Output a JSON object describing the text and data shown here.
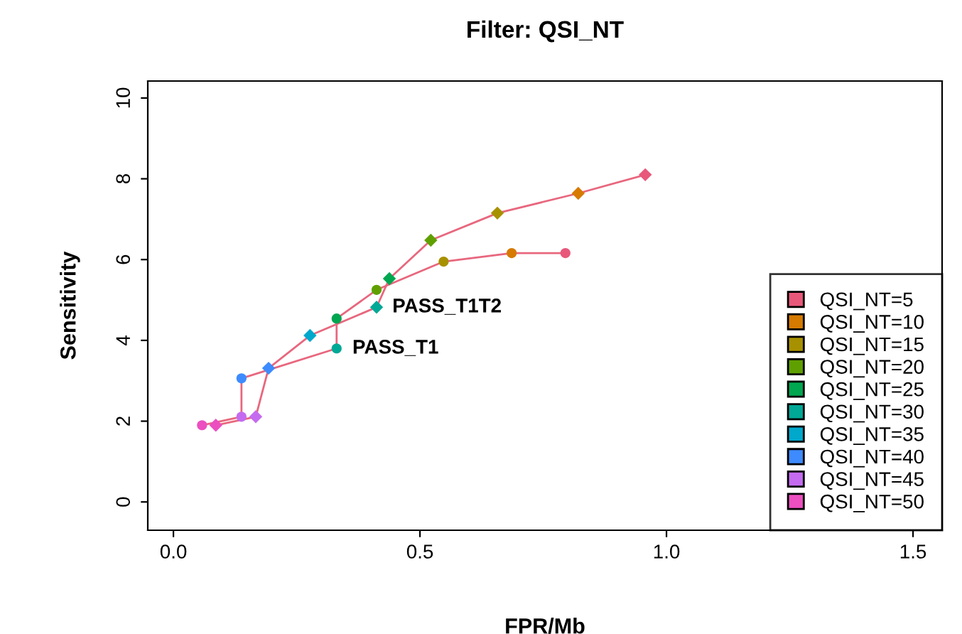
{
  "chart_data": {
    "type": "scatter",
    "title": "Filter: QSI_NT",
    "xlabel": "FPR/Mb",
    "ylabel": "Sensitivity",
    "xlim": [
      -0.052,
      1.559
    ],
    "ylim": [
      -0.7,
      10.42
    ],
    "xticks": [
      {
        "value": 0,
        "label": "0.0"
      },
      0.5,
      {
        "value": 1,
        "label": "1.0"
      },
      1.5
    ],
    "yticks": [
      0,
      2,
      4,
      6,
      8,
      10
    ],
    "grid": false,
    "legend": "bottom right",
    "series": [
      {
        "type": "line",
        "color": "#e8677e",
        "marker": "none",
        "x": [
          0.957,
          0.821,
          0.657,
          0.522,
          0.438,
          0.412,
          0.277,
          0.193,
          0.167,
          0.086
        ],
        "values": [
          8.1,
          7.64,
          7.15,
          6.48,
          5.53,
          4.82,
          4.12,
          3.31,
          2.11,
          1.9
        ]
      },
      {
        "type": "line",
        "color": "#e8677e",
        "marker": "none",
        "x": [
          0.795,
          0.686,
          0.548,
          0.412,
          0.331,
          0.331,
          0.138,
          0.138,
          0.058
        ],
        "values": [
          6.16,
          6.16,
          5.95,
          5.25,
          4.54,
          3.8,
          3.06,
          2.11,
          1.9
        ]
      },
      {
        "name": "QSI_NT=5",
        "color": "#e8587a",
        "marker": "diamond",
        "x": [
          0.957
        ],
        "values": [
          8.1
        ]
      },
      {
        "name": "QSI_NT=10",
        "color": "#d67a00",
        "marker": "diamond",
        "x": [
          0.821
        ],
        "values": [
          7.64
        ]
      },
      {
        "name": "QSI_NT=15",
        "color": "#a89100",
        "marker": "diamond",
        "x": [
          0.657
        ],
        "values": [
          7.15
        ]
      },
      {
        "name": "QSI_NT=20",
        "color": "#5fa000",
        "marker": "diamond",
        "x": [
          0.522
        ],
        "values": [
          6.48
        ]
      },
      {
        "name": "QSI_NT=25",
        "color": "#00a650",
        "marker": "diamond",
        "x": [
          0.438
        ],
        "values": [
          5.53
        ]
      },
      {
        "name": "QSI_NT=30",
        "color": "#00a896",
        "marker": "diamond",
        "x": [
          0.412
        ],
        "values": [
          4.82
        ]
      },
      {
        "name": "QSI_NT=35",
        "color": "#00a8cc",
        "marker": "diamond",
        "x": [
          0.277
        ],
        "values": [
          4.12
        ]
      },
      {
        "name": "QSI_NT=40",
        "color": "#3d8bff",
        "marker": "diamond",
        "x": [
          0.193
        ],
        "values": [
          3.31
        ]
      },
      {
        "name": "QSI_NT=45",
        "color": "#c46bf0",
        "marker": "diamond",
        "x": [
          0.167
        ],
        "values": [
          2.11
        ]
      },
      {
        "name": "QSI_NT=50",
        "color": "#eb4fc0",
        "marker": "diamond",
        "x": [
          0.086
        ],
        "values": [
          1.9
        ]
      },
      {
        "color": "#e8587a",
        "marker": "circle",
        "x": [
          0.795
        ],
        "values": [
          6.16
        ]
      },
      {
        "color": "#d67a00",
        "marker": "circle",
        "x": [
          0.686
        ],
        "values": [
          6.16
        ]
      },
      {
        "color": "#a89100",
        "marker": "circle",
        "x": [
          0.548
        ],
        "values": [
          5.95
        ]
      },
      {
        "color": "#5fa000",
        "marker": "circle",
        "x": [
          0.412
        ],
        "values": [
          5.25
        ]
      },
      {
        "color": "#00a650",
        "marker": "circle",
        "x": [
          0.331
        ],
        "values": [
          4.54
        ]
      },
      {
        "color": "#00a896",
        "marker": "circle",
        "x": [
          0.331
        ],
        "values": [
          3.8
        ]
      },
      {
        "color": "#3d8bff",
        "marker": "circle",
        "x": [
          0.138
        ],
        "values": [
          3.06
        ]
      },
      {
        "color": "#c46bf0",
        "marker": "circle",
        "x": [
          0.138
        ],
        "values": [
          2.11
        ]
      },
      {
        "color": "#eb4fc0",
        "marker": "circle",
        "x": [
          0.058
        ],
        "values": [
          1.9
        ]
      }
    ],
    "annotations": [
      {
        "text": "PASS_T1T2",
        "x": 0.412,
        "y": 4.82
      },
      {
        "text": "PASS_T1",
        "x": 0.331,
        "y": 3.8
      }
    ]
  }
}
